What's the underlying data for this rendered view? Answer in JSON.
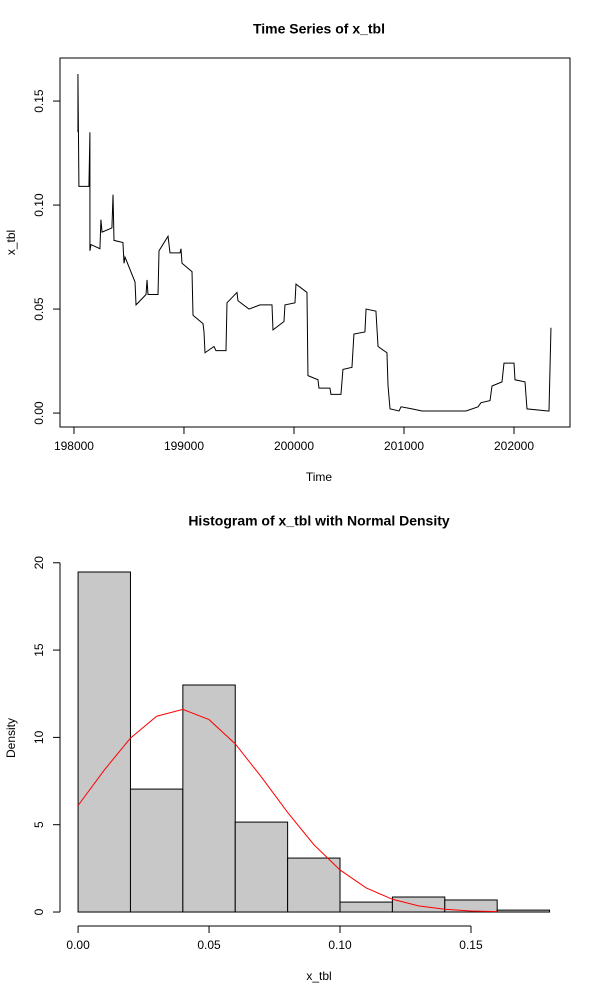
{
  "chart_data": [
    {
      "type": "line",
      "title": "Time Series of x_tbl",
      "xlabel": "Time",
      "ylabel": "x_tbl",
      "color": "#000000",
      "box": true,
      "x": [
        198036,
        198036,
        198045,
        198136,
        198145,
        198145,
        198155,
        198236,
        198245,
        198255,
        198345,
        198355,
        198364,
        198445,
        198455,
        198464,
        198555,
        198564,
        198655,
        198664,
        198673,
        198764,
        198773,
        198855,
        198873,
        198964,
        198973,
        198982,
        199073,
        199082,
        199173,
        199182,
        199191,
        199273,
        199291,
        199382,
        199391,
        199482,
        199491,
        199591,
        199691,
        199800,
        199809,
        199909,
        199918,
        200009,
        200018,
        200118,
        200127,
        200218,
        200227,
        200327,
        200336,
        200427,
        200445,
        200527,
        200545,
        200645,
        200655,
        200745,
        200764,
        200845,
        200855,
        200873,
        200955,
        200973,
        201073,
        201164,
        201264,
        201364,
        201464,
        201564,
        201673,
        201700,
        201782,
        201800,
        201891,
        201909,
        202000,
        202009,
        202100,
        202118,
        202309,
        202318,
        202336
      ],
      "values": [
        0.135,
        0.163,
        0.109,
        0.109,
        0.135,
        0.078,
        0.081,
        0.079,
        0.093,
        0.087,
        0.089,
        0.105,
        0.083,
        0.082,
        0.072,
        0.075,
        0.063,
        0.052,
        0.057,
        0.064,
        0.057,
        0.057,
        0.078,
        0.085,
        0.077,
        0.077,
        0.079,
        0.072,
        0.068,
        0.047,
        0.043,
        0.039,
        0.029,
        0.032,
        0.03,
        0.03,
        0.053,
        0.058,
        0.054,
        0.05,
        0.052,
        0.052,
        0.04,
        0.044,
        0.052,
        0.053,
        0.062,
        0.058,
        0.018,
        0.016,
        0.012,
        0.012,
        0.009,
        0.009,
        0.021,
        0.022,
        0.038,
        0.039,
        0.05,
        0.049,
        0.032,
        0.029,
        0.013,
        0.002,
        0.001,
        0.003,
        0.002,
        0.001,
        0.001,
        0.001,
        0.001,
        0.001,
        0.003,
        0.005,
        0.006,
        0.013,
        0.015,
        0.024,
        0.024,
        0.016,
        0.015,
        0.002,
        0.001,
        0.001,
        0.041
      ],
      "xlim": [
        197873,
        202509
      ],
      "xticks": [
        198000,
        199000,
        200000,
        201000,
        202000
      ],
      "ylim": [
        -0.0067,
        0.1707
      ],
      "yticks": [
        {
          "value": 0,
          "label": "0.00"
        },
        0.05,
        {
          "value": 0.1,
          "label": "0.10"
        },
        0.15
      ]
    },
    {
      "type": "histogram",
      "title": "Histogram of x_tbl with Normal Density",
      "xlabel": "x_tbl",
      "ylabel": "Density",
      "color": "#c8c8c8",
      "box": false,
      "bins": [
        0,
        0.02,
        0.04,
        0.06,
        0.08,
        0.1,
        0.12,
        0.14,
        0.16,
        0.18
      ],
      "values": [
        19.47,
        7.04,
        13.0,
        5.15,
        3.09,
        0.57,
        0.86,
        0.69,
        0.11
      ],
      "density_curve": {
        "color": "#ff0000",
        "x": [
          0,
          0.01,
          0.02,
          0.03,
          0.04,
          0.05,
          0.06,
          0.07,
          0.08,
          0.09,
          0.1,
          0.11,
          0.12,
          0.13,
          0.14,
          0.15,
          0.16
        ],
        "values": [
          6.1,
          8.13,
          9.96,
          11.21,
          11.6,
          11.02,
          9.63,
          7.73,
          5.7,
          3.86,
          2.41,
          1.38,
          0.73,
          0.35,
          0.16,
          0.06,
          0.02
        ]
      },
      "xlim": [
        -0.0069,
        0.1878
      ],
      "xticks": [
        {
          "value": 0,
          "label": "0.00"
        },
        0.05,
        {
          "value": 0.1,
          "label": "0.10"
        },
        0.15
      ],
      "ylim": [
        -0.8,
        20.73
      ],
      "yticks": [
        0,
        5,
        10,
        15,
        20
      ]
    }
  ]
}
